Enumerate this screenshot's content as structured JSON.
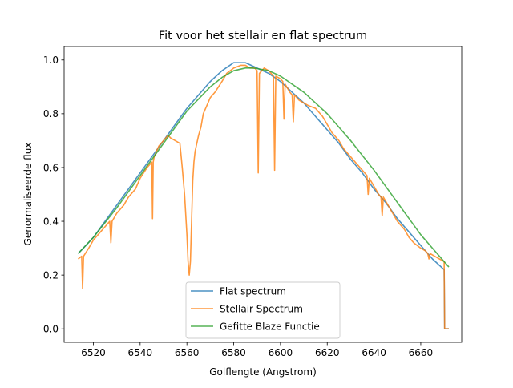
{
  "chart_data": {
    "type": "line",
    "title": "Fit voor het stellair en flat spectrum",
    "xlabel": "Golflengte (Angstrom)",
    "ylabel": "Genormaliseerde flux",
    "xlim": [
      6507.5,
      6677.5
    ],
    "ylim": [
      -0.05,
      1.05
    ],
    "xticks": [
      6520,
      6540,
      6560,
      6580,
      6600,
      6620,
      6640,
      6660
    ],
    "yticks": [
      0.0,
      0.2,
      0.4,
      0.6,
      0.8,
      1.0
    ],
    "xtick_labels": [
      "6520",
      "6540",
      "6560",
      "6580",
      "6600",
      "6620",
      "6640",
      "6660"
    ],
    "ytick_labels": [
      "0.0",
      "0.2",
      "0.4",
      "0.6",
      "0.8",
      "1.0"
    ],
    "grid": false,
    "legend_position": "lower-center",
    "series": [
      {
        "name": "Flat spectrum",
        "color": "#1f77b4",
        "x": [
          6513.5,
          6520,
          6525,
          6530,
          6535,
          6540,
          6545,
          6550,
          6555,
          6560,
          6565,
          6570,
          6575,
          6580,
          6585,
          6590,
          6595,
          6600,
          6605,
          6610,
          6615,
          6620,
          6625,
          6630,
          6635,
          6640,
          6645,
          6650,
          6655,
          6660,
          6665,
          6670,
          6670.2,
          6671,
          6672
        ],
        "values": [
          0.28,
          0.34,
          0.4,
          0.46,
          0.52,
          0.58,
          0.64,
          0.7,
          0.76,
          0.82,
          0.87,
          0.92,
          0.96,
          0.99,
          0.99,
          0.97,
          0.95,
          0.92,
          0.88,
          0.84,
          0.79,
          0.74,
          0.69,
          0.63,
          0.58,
          0.52,
          0.47,
          0.41,
          0.36,
          0.31,
          0.26,
          0.22,
          0.0,
          0.0,
          0.0
        ]
      },
      {
        "name": "Stellair Spectrum",
        "color": "#ff7f0e",
        "x": [
          6513.5,
          6515,
          6515.4,
          6515.8,
          6518,
          6520,
          6523,
          6525,
          6527,
          6527.5,
          6528,
          6530,
          6533,
          6535,
          6538,
          6540,
          6543,
          6545,
          6545.3,
          6545.6,
          6546,
          6548,
          6550,
          6552,
          6553,
          6555,
          6557,
          6558,
          6559,
          6560,
          6560.5,
          6561,
          6561.5,
          6562,
          6562.5,
          6563,
          6563.5,
          6564,
          6565,
          6566,
          6567,
          6568,
          6570,
          6572,
          6575,
          6577,
          6580,
          6583,
          6585,
          6587,
          6589,
          6590,
          6590.5,
          6591,
          6592,
          6593,
          6595,
          6597,
          6597.5,
          6598,
          6600,
          6601,
          6601.5,
          6602,
          6604,
          6605,
          6605.5,
          6606,
          6608,
          6610,
          6612,
          6615,
          6618,
          6620,
          6622,
          6625,
          6627,
          6630,
          6633,
          6635,
          6637,
          6637.5,
          6638,
          6640,
          6642,
          6643,
          6643.5,
          6644,
          6646,
          6648,
          6650,
          6653,
          6655,
          6657,
          6660,
          6662,
          6663,
          6663.5,
          6664,
          6666,
          6668,
          6670,
          6670.2,
          6671,
          6672
        ],
        "values": [
          0.26,
          0.27,
          0.15,
          0.27,
          0.3,
          0.33,
          0.36,
          0.38,
          0.4,
          0.32,
          0.4,
          0.43,
          0.46,
          0.49,
          0.52,
          0.56,
          0.6,
          0.62,
          0.41,
          0.62,
          0.64,
          0.68,
          0.7,
          0.72,
          0.71,
          0.7,
          0.69,
          0.6,
          0.5,
          0.35,
          0.25,
          0.2,
          0.25,
          0.4,
          0.55,
          0.62,
          0.66,
          0.68,
          0.72,
          0.75,
          0.8,
          0.82,
          0.86,
          0.88,
          0.92,
          0.95,
          0.97,
          0.98,
          0.98,
          0.97,
          0.97,
          0.96,
          0.58,
          0.95,
          0.96,
          0.97,
          0.96,
          0.94,
          0.59,
          0.94,
          0.93,
          0.92,
          0.78,
          0.91,
          0.88,
          0.87,
          0.77,
          0.87,
          0.85,
          0.84,
          0.83,
          0.82,
          0.79,
          0.76,
          0.73,
          0.7,
          0.67,
          0.64,
          0.61,
          0.59,
          0.57,
          0.5,
          0.56,
          0.53,
          0.5,
          0.49,
          0.42,
          0.49,
          0.46,
          0.43,
          0.4,
          0.37,
          0.34,
          0.32,
          0.3,
          0.29,
          0.28,
          0.26,
          0.28,
          0.27,
          0.26,
          0.25,
          0.0,
          0.0,
          0.0
        ]
      },
      {
        "name": "Gefitte Blaze Functie",
        "color": "#2ca02c",
        "x": [
          6513.5,
          6520,
          6530,
          6540,
          6550,
          6560,
          6570,
          6575,
          6580,
          6585,
          6588,
          6590,
          6595,
          6600,
          6610,
          6620,
          6630,
          6640,
          6650,
          6660,
          6665,
          6672
        ],
        "values": [
          0.28,
          0.34,
          0.45,
          0.57,
          0.69,
          0.81,
          0.9,
          0.935,
          0.96,
          0.97,
          0.97,
          0.968,
          0.96,
          0.94,
          0.88,
          0.8,
          0.7,
          0.59,
          0.47,
          0.35,
          0.3,
          0.23
        ]
      }
    ]
  }
}
